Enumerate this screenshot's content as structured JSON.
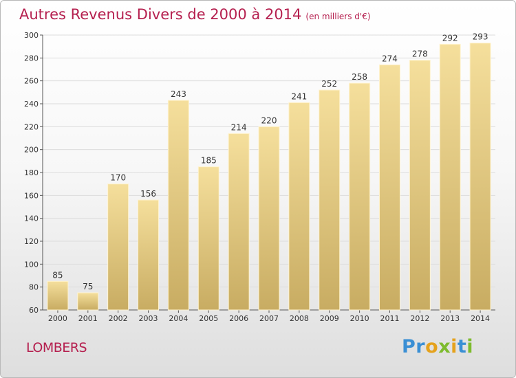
{
  "chart_data": {
    "type": "bar",
    "title": "Autres Revenus Divers de 2000 à 2014",
    "subtitle": "(en milliers d'€)",
    "categories": [
      "2000",
      "2001",
      "2002",
      "2003",
      "2004",
      "2005",
      "2006",
      "2007",
      "2008",
      "2009",
      "2010",
      "2011",
      "2012",
      "2013",
      "2014"
    ],
    "values": [
      85,
      75,
      170,
      156,
      243,
      185,
      214,
      220,
      241,
      252,
      258,
      274,
      278,
      292,
      293
    ],
    "ylim": [
      60,
      300
    ],
    "yticks": [
      60,
      80,
      100,
      120,
      140,
      160,
      180,
      200,
      220,
      240,
      260,
      280,
      300
    ],
    "grid": true,
    "bar_color_top": "#f5df9c",
    "bar_color_bottom": "#c8ac62"
  },
  "place": "LOMBERS",
  "logo": {
    "text": "Proxiti"
  }
}
